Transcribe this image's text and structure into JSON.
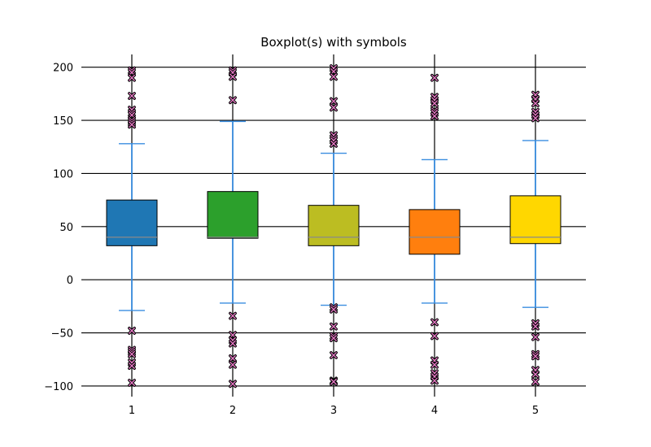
{
  "chart_data": {
    "type": "box",
    "title": "Boxplot(s) with symbols",
    "xlabel": "",
    "ylabel": "",
    "categories": [
      "1",
      "2",
      "3",
      "4",
      "5"
    ],
    "ylim": [
      -110,
      212
    ],
    "yticks": [
      -100,
      -50,
      0,
      50,
      100,
      150,
      200
    ],
    "ytick_labels": [
      "−100",
      "−50",
      "0",
      "50",
      "100",
      "150",
      "200"
    ],
    "grid": "y-axis and x-category lines",
    "legend": "none",
    "colors": {
      "whisker": "#3a8ee0",
      "median": "#8a8a8a",
      "outlier_face": "#e377c2",
      "grid": "#000000"
    },
    "boxes": [
      {
        "label": "1",
        "q1": 32,
        "median": 40,
        "q3": 75,
        "whislo": -29,
        "whishi": 128,
        "color": "#1f77b4",
        "fliers": [
          197,
          195,
          190,
          173,
          160,
          157,
          155,
          150,
          148,
          146,
          -48,
          -66,
          -68,
          -70,
          -78,
          -81,
          -97
        ]
      },
      {
        "label": "2",
        "q1": 39,
        "median": 40,
        "q3": 83,
        "whislo": -22,
        "whishi": 149,
        "color": "#2ca02c",
        "fliers": [
          197,
          195,
          191,
          169,
          -34,
          -52,
          -57,
          -60,
          -74,
          -80,
          -98
        ]
      },
      {
        "label": "3",
        "q1": 32,
        "median": 40,
        "q3": 70,
        "whislo": -24,
        "whishi": 119,
        "color": "#bcbd22",
        "fliers": [
          199,
          196,
          191,
          168,
          162,
          136,
          133,
          131,
          128,
          -26,
          -28,
          -44,
          -53,
          -55,
          -71,
          -95,
          -96
        ]
      },
      {
        "label": "4",
        "q1": 24,
        "median": 40,
        "q3": 66,
        "whislo": -22,
        "whishi": 113,
        "color": "#ff7f0e",
        "fliers": [
          190,
          172,
          169,
          166,
          159,
          157,
          154,
          -40,
          -53,
          -76,
          -80,
          -88,
          -91,
          -95
        ]
      },
      {
        "label": "5",
        "q1": 34,
        "median": 40,
        "q3": 79,
        "whislo": -26,
        "whishi": 131,
        "color": "#ffd700",
        "fliers": [
          174,
          170,
          166,
          158,
          155,
          152,
          -41,
          -44,
          -54,
          -70,
          -72,
          -85,
          -89,
          -96
        ]
      }
    ]
  }
}
